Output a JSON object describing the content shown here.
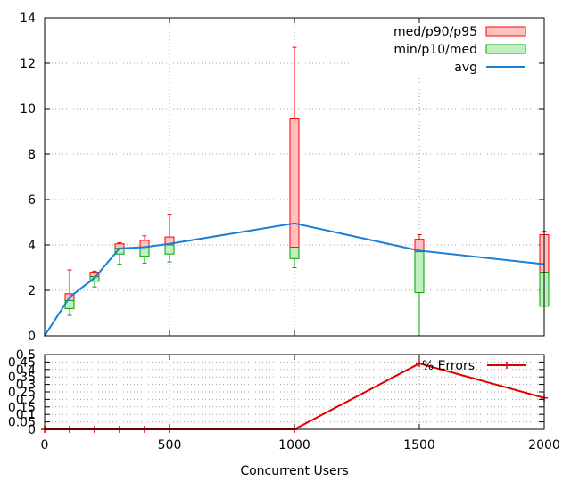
{
  "chart_data": [
    {
      "type": "boxplot",
      "xlabel": "",
      "ylabel": "",
      "xlim": [
        0,
        2000
      ],
      "ylim": [
        0,
        14
      ],
      "x_ticks": [
        0,
        500,
        1000,
        1500,
        2000
      ],
      "y_ticks": [
        0,
        2,
        4,
        6,
        8,
        10,
        12,
        14
      ],
      "grid": true,
      "legend_position": "top-right",
      "legend": [
        {
          "name": "med/p90/p95",
          "kind": "upper-box",
          "color": "#ff0000",
          "fill": "#ffc0c0"
        },
        {
          "name": "min/p10/med",
          "kind": "lower-box",
          "color": "#00a000",
          "fill": "#c0f0c0"
        },
        {
          "name": "avg",
          "kind": "line",
          "color": "#1a7fd6"
        }
      ],
      "x": [
        0,
        100,
        200,
        300,
        400,
        500,
        1000,
        1500,
        2000
      ],
      "min": [
        0,
        0.9,
        2.15,
        3.15,
        3.2,
        3.25,
        3.0,
        0.0,
        1.3
      ],
      "p10": [
        0,
        1.2,
        2.4,
        3.6,
        3.5,
        3.6,
        3.4,
        1.9,
        1.3
      ],
      "med": [
        0,
        1.55,
        2.6,
        3.85,
        3.9,
        4.0,
        3.9,
        3.7,
        2.8
      ],
      "p90": [
        0,
        1.85,
        2.8,
        4.05,
        4.2,
        4.35,
        9.55,
        4.25,
        4.45
      ],
      "p95": [
        0,
        2.9,
        2.85,
        4.1,
        4.4,
        5.35,
        12.7,
        4.45,
        4.6
      ],
      "avg": [
        0,
        1.7,
        2.55,
        3.85,
        3.9,
        4.05,
        4.95,
        3.75,
        3.15
      ]
    },
    {
      "type": "line",
      "xlabel": "Concurrent Users",
      "ylabel": "",
      "xlim": [
        0,
        2000
      ],
      "ylim": [
        0,
        0.5
      ],
      "x_ticks": [
        0,
        500,
        1000,
        1500,
        2000
      ],
      "y_ticks": [
        0,
        0.05,
        0.1,
        0.15,
        0.2,
        0.25,
        0.3,
        0.35,
        0.4,
        0.45,
        0.5
      ],
      "grid": true,
      "legend_position": "top-right",
      "series": [
        {
          "name": "% Errors",
          "color": "#e00000",
          "x": [
            0,
            100,
            200,
            300,
            400,
            500,
            1000,
            1500,
            2000
          ],
          "values": [
            0,
            0,
            0,
            0,
            0,
            0,
            0,
            0.44,
            0.21
          ]
        }
      ]
    }
  ]
}
